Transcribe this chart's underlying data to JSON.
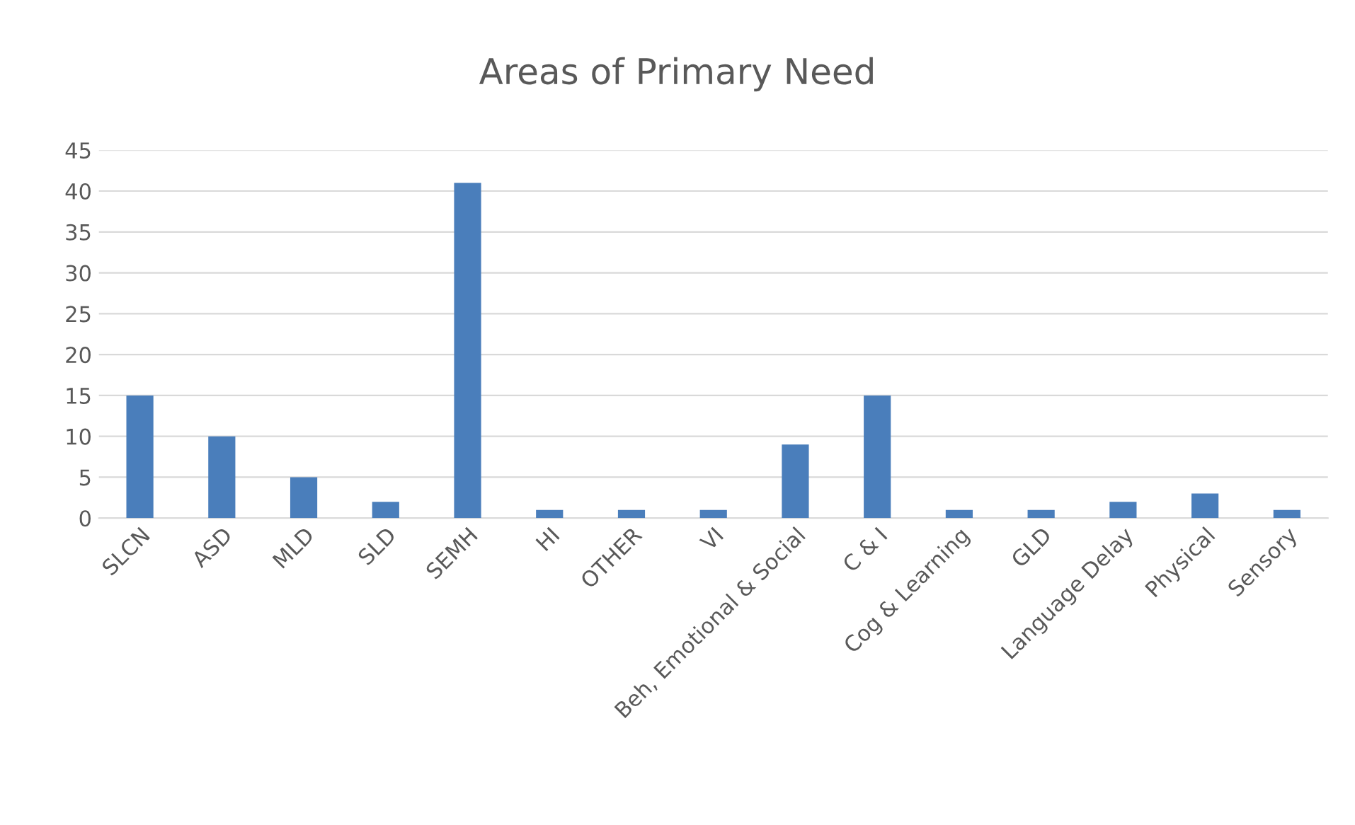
{
  "chart_data": {
    "type": "bar",
    "title": "Areas of Primary Need",
    "categories": [
      "SLCN",
      "ASD",
      "MLD",
      "SLD",
      "SEMH",
      "HI",
      "OTHER",
      "VI",
      "Beh, Emotional & Social",
      "C & I",
      "Cog & Learning",
      "GLD",
      "Language Delay",
      "Physical",
      "Sensory"
    ],
    "values": [
      15,
      10,
      5,
      2,
      41,
      1,
      1,
      1,
      9,
      15,
      1,
      1,
      2,
      3,
      1
    ],
    "color": "#4a7ebb",
    "ylim": [
      0,
      45
    ],
    "yticks": [
      0,
      5,
      10,
      15,
      20,
      25,
      30,
      35,
      40,
      45
    ],
    "grid": "y",
    "legend": false
  }
}
